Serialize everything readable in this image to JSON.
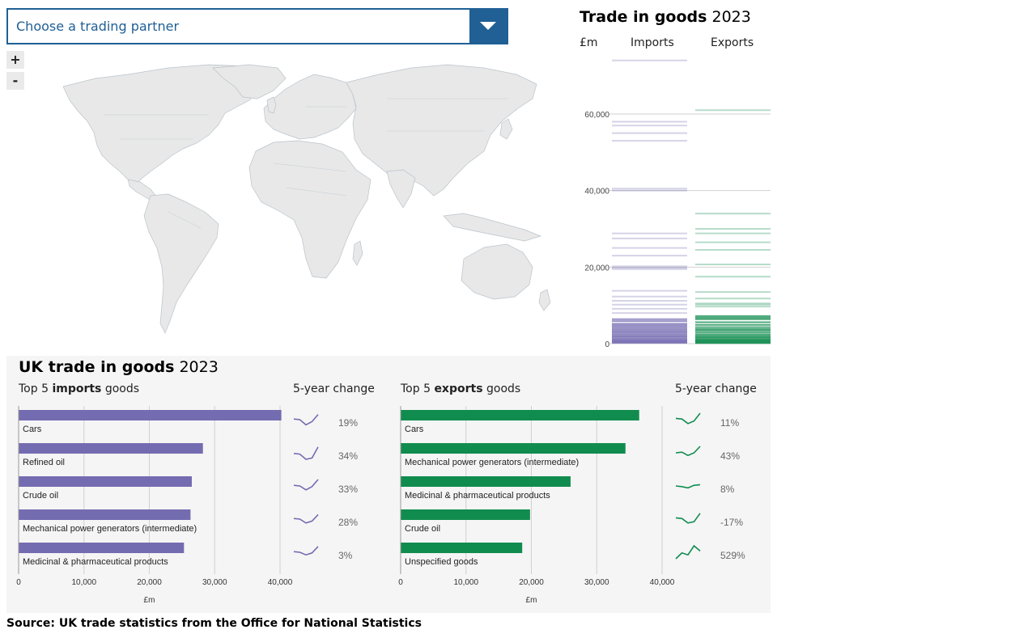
{
  "dropdown": {
    "placeholder": "Choose a trading partner",
    "icon": "chevron-down-icon"
  },
  "zoom": {
    "in_label": "+",
    "out_label": "-"
  },
  "map": {
    "fill": "#e8e8e8",
    "stroke": "#b9c3cb"
  },
  "trade_strip": {
    "title_bold": "Trade in goods",
    "title_rest": "2023",
    "unit_label": "£m",
    "imports_label": "Imports",
    "exports_label": "Exports",
    "y_ticks": [
      {
        "value": 0,
        "label": "0"
      },
      {
        "value": 20000,
        "label": "20,000"
      },
      {
        "value": 40000,
        "label": "40,000"
      },
      {
        "value": 60000,
        "label": "60,000"
      }
    ]
  },
  "bottom": {
    "title_bold": "UK trade in goods",
    "title_rest": "2023",
    "imports_head_pre": "Top 5 ",
    "imports_head_bold": "imports",
    "imports_head_post": " goods",
    "exports_head_pre": "Top 5 ",
    "exports_head_bold": "exports",
    "exports_head_post": " goods",
    "change_head": "5-year change",
    "axis_unit": "£m"
  },
  "source_text": "Source: UK trade statistics from the Office for National Statistics",
  "chart_data": [
    {
      "type": "scatter",
      "title": "Trade in goods 2023",
      "ylabel": "£m",
      "ylim": [
        0,
        75000
      ],
      "grid": true,
      "series": [
        {
          "name": "Imports",
          "color": "#746cb1",
          "values": [
            74000,
            58000,
            57000,
            55000,
            53000,
            40500,
            40000,
            28800,
            27500,
            25000,
            23000,
            20200,
            19800,
            19500,
            13800,
            12300,
            11200,
            10200,
            9100,
            8000,
            6400,
            5900,
            5200,
            4800,
            4400,
            4000,
            3600,
            3200,
            2900,
            2500,
            2200,
            1900,
            1600,
            1300,
            1000,
            800,
            600,
            400,
            200
          ]
        },
        {
          "name": "Exports",
          "color": "#118c4f",
          "values": [
            61000,
            34000,
            30000,
            28800,
            26500,
            24500,
            20700,
            17500,
            13500,
            11800,
            10500,
            10200,
            9700,
            7200,
            6800,
            6400,
            5600,
            4900,
            4300,
            3800,
            3400,
            2900,
            2400,
            2000,
            1700,
            1400,
            1100,
            900,
            700,
            500,
            300,
            150
          ]
        }
      ]
    },
    {
      "type": "bar",
      "title": "Top 5 imports goods",
      "xlabel": "£m",
      "xlim": [
        0,
        40000
      ],
      "x_ticks": [
        0,
        10000,
        20000,
        30000,
        40000
      ],
      "color": "#746cb1",
      "categories": [
        "Cars",
        "Refined oil",
        "Crude oil",
        "Mechanical power generators (intermediate)",
        "Medicinal & pharmaceutical products"
      ],
      "values": [
        40200,
        28200,
        26500,
        26300,
        25300
      ],
      "five_year_change": [
        "19%",
        "34%",
        "33%",
        "28%",
        "3%"
      ],
      "sparklines": [
        [
          0.55,
          0.5,
          0.1,
          0.35,
          0.9
        ],
        [
          0.45,
          0.4,
          0.0,
          0.1,
          0.95
        ],
        [
          0.55,
          0.5,
          0.2,
          0.45,
          1.0
        ],
        [
          0.55,
          0.5,
          0.2,
          0.35,
          0.85
        ],
        [
          0.55,
          0.5,
          0.3,
          0.45,
          0.95
        ]
      ]
    },
    {
      "type": "bar",
      "title": "Top 5 exports goods",
      "xlabel": "£m",
      "xlim": [
        0,
        40000
      ],
      "x_ticks": [
        0,
        10000,
        20000,
        30000,
        40000
      ],
      "color": "#118c4f",
      "categories": [
        "Cars",
        "Mechanical power generators (intermediate)",
        "Medicinal & pharmaceutical products",
        "Crude oil",
        "Unspecified goods"
      ],
      "values": [
        36500,
        34400,
        26000,
        19800,
        18600
      ],
      "five_year_change": [
        "11%",
        "43%",
        "8%",
        "-17%",
        "529%"
      ],
      "sparklines": [
        [
          0.6,
          0.55,
          0.2,
          0.4,
          1.0
        ],
        [
          0.5,
          0.55,
          0.3,
          0.5,
          1.0
        ],
        [
          0.5,
          0.45,
          0.35,
          0.55,
          0.6
        ],
        [
          0.6,
          0.55,
          0.2,
          0.3,
          0.95
        ],
        [
          0.0,
          0.45,
          0.3,
          1.0,
          0.6
        ]
      ]
    }
  ]
}
